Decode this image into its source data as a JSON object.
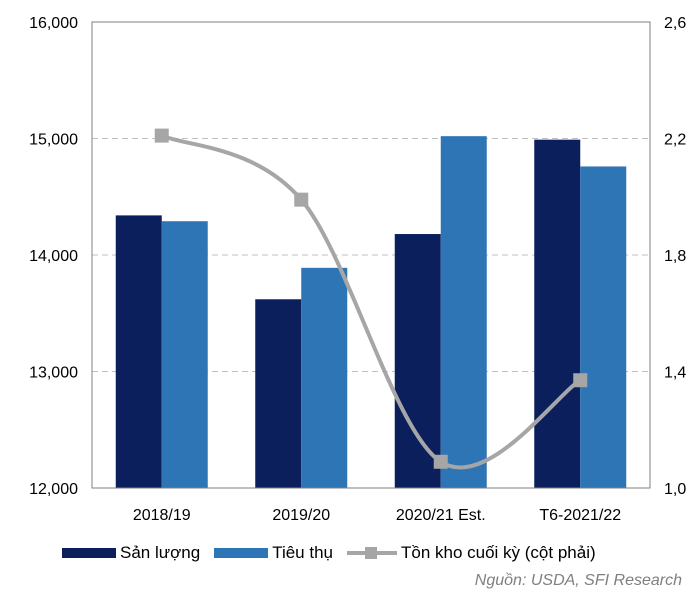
{
  "chart_data": {
    "type": "bar",
    "categories": [
      "2018/19",
      "2019/20",
      "2020/21 Est.",
      "T6-2021/22"
    ],
    "series": [
      {
        "name": "Sản lượng",
        "type": "bar",
        "axis": "left",
        "color": "#0b1f5c",
        "values": [
          14340,
          13620,
          14180,
          14990
        ]
      },
      {
        "name": "Tiêu thụ",
        "type": "bar",
        "axis": "left",
        "color": "#2e75b6",
        "values": [
          14290,
          13890,
          15020,
          14760
        ]
      },
      {
        "name": "Tồn kho cuối kỳ (cột phải)",
        "type": "line",
        "axis": "right",
        "color": "#a6a6a6",
        "values": [
          2.21,
          1.99,
          1.09,
          1.37
        ]
      }
    ],
    "ylim": [
      12000,
      16000
    ],
    "y_ticks": [
      "12,000",
      "13,000",
      "14,000",
      "15,000",
      "16,000"
    ],
    "y2lim": [
      1.0,
      2.6
    ],
    "y2_ticks": [
      "1,0",
      "1,4",
      "1,8",
      "2,2",
      "2,6"
    ],
    "grid": true,
    "legend_position": "bottom"
  },
  "source": "Nguồn: USDA, SFI Research"
}
